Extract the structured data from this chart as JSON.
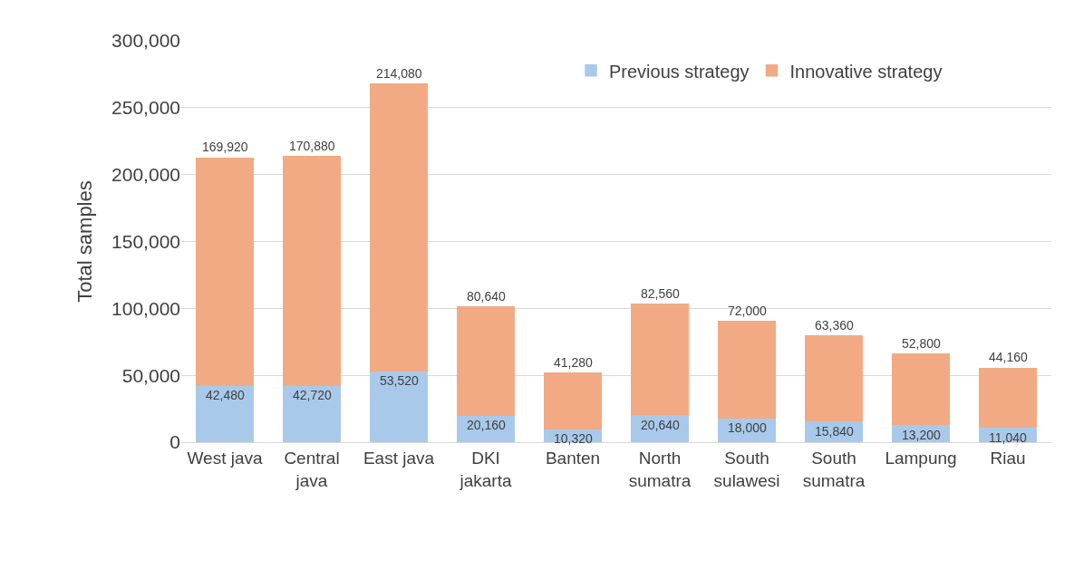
{
  "chart_data": {
    "type": "bar",
    "stacked": true,
    "ylabel": "Total samples",
    "categories": [
      "West java",
      "Central java",
      "East java",
      "DKI jakarta",
      "Banten",
      "North sumatra",
      "South sulawesi",
      "South sumatra",
      "Lampung",
      "Riau"
    ],
    "series": [
      {
        "name": "Previous strategy",
        "color": "#a9c9ea",
        "values": [
          42480,
          42720,
          53520,
          20160,
          10320,
          20640,
          18000,
          15840,
          13200,
          11040
        ],
        "value_labels": [
          "42,480",
          "42,720",
          "53,520",
          "20,160",
          "10,320",
          "20,640",
          "18,000",
          "15,840",
          "13,200",
          "11,040"
        ]
      },
      {
        "name": "Innovative strategy",
        "color": "#f2aa84",
        "values": [
          169920,
          170880,
          214080,
          80640,
          41280,
          82560,
          72000,
          63360,
          52800,
          44160
        ],
        "value_labels": [
          "169,920",
          "170,880",
          "214,080",
          "80,640",
          "41,280",
          "82,560",
          "72,000",
          "63,360",
          "52,800",
          "44,160"
        ]
      }
    ],
    "ylim": [
      0,
      300000
    ],
    "yticks": [
      {
        "value": 0,
        "label": "0"
      },
      {
        "value": 50000,
        "label": "50,000"
      },
      {
        "value": 100000,
        "label": "100,000"
      },
      {
        "value": 150000,
        "label": "150,000"
      },
      {
        "value": 200000,
        "label": "200,000"
      },
      {
        "value": 250000,
        "label": "250,000"
      },
      {
        "value": 300000,
        "label": "300,000"
      }
    ],
    "grid": "y",
    "legend": "top right"
  }
}
